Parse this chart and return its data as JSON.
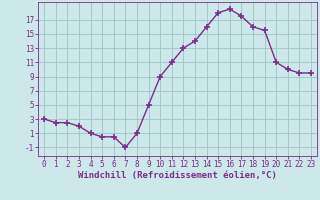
{
  "x": [
    0,
    1,
    2,
    3,
    4,
    5,
    6,
    7,
    8,
    9,
    10,
    11,
    12,
    13,
    14,
    15,
    16,
    17,
    18,
    19,
    20,
    21,
    22,
    23
  ],
  "y": [
    3,
    2.5,
    2.5,
    2,
    1,
    0.5,
    0.5,
    -1,
    1,
    5,
    9,
    11,
    13,
    14,
    16,
    18,
    18.5,
    17.5,
    16,
    15.5,
    11,
    10,
    9.5,
    9.5
  ],
  "line_color": "#7b2d8b",
  "marker": "+",
  "marker_size": 4,
  "bg_color": "#cce8e8",
  "grid_color": "#9dc4c4",
  "xlabel": "Windchill (Refroidissement éolien,°C)",
  "xlabel_color": "#7b2d8b",
  "yticks": [
    -1,
    1,
    3,
    5,
    7,
    9,
    11,
    13,
    15,
    17
  ],
  "xticks": [
    0,
    1,
    2,
    3,
    4,
    5,
    6,
    7,
    8,
    9,
    10,
    11,
    12,
    13,
    14,
    15,
    16,
    17,
    18,
    19,
    20,
    21,
    22,
    23
  ],
  "xlim": [
    -0.5,
    23.5
  ],
  "ylim": [
    -2.2,
    19.5
  ],
  "tick_color": "#7b2d8b",
  "tick_fontsize": 5.5,
  "xlabel_fontsize": 6.5,
  "linewidth": 1.0,
  "marker_linewidth": 1.2
}
